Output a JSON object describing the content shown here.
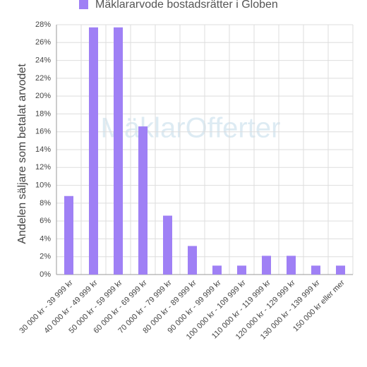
{
  "chart_data": {
    "type": "bar",
    "legend_label": "Mäklararvode bostadsrätter i Globen",
    "y_label": "Andelen säljare som betalat arvodet",
    "watermark": "MäklarOfferter",
    "categories": [
      "30 000 kr - 39 999 kr",
      "40 000 kr - 49 999 kr",
      "50 000 kr - 59 999 kr",
      "60 000 kr - 69 999 kr",
      "70 000 kr - 79 999 kr",
      "80 000 kr - 89 999 kr",
      "90 000 kr - 99 999 kr",
      "100 000 kr - 109 999 kr",
      "110 000 kr - 119 999 kr",
      "120 000 kr - 129 999 kr",
      "130 000 kr - 139 999 kr",
      "150 000 kr eller mer"
    ],
    "values": [
      8.8,
      27.7,
      27.7,
      16.6,
      6.6,
      3.2,
      1.0,
      1.0,
      2.1,
      2.1,
      1.0,
      1.0
    ],
    "color": "#9f80f5",
    "ylim": [
      0,
      28
    ],
    "yticks": [
      {
        "value": 0,
        "label": "0%"
      },
      {
        "value": 2,
        "label": "2%"
      },
      {
        "value": 4,
        "label": "4%"
      },
      {
        "value": 6,
        "label": "6%"
      },
      {
        "value": 8,
        "label": "8%"
      },
      {
        "value": 10,
        "label": "10%"
      },
      {
        "value": 12,
        "label": "12%"
      },
      {
        "value": 14,
        "label": "14%"
      },
      {
        "value": 16,
        "label": "16%"
      },
      {
        "value": 18,
        "label": "18%"
      },
      {
        "value": 20,
        "label": "20%"
      },
      {
        "value": 22,
        "label": "22%"
      },
      {
        "value": 24,
        "label": "24%"
      },
      {
        "value": 26,
        "label": "26%"
      },
      {
        "value": 28,
        "label": "28%"
      }
    ],
    "grid": true
  }
}
